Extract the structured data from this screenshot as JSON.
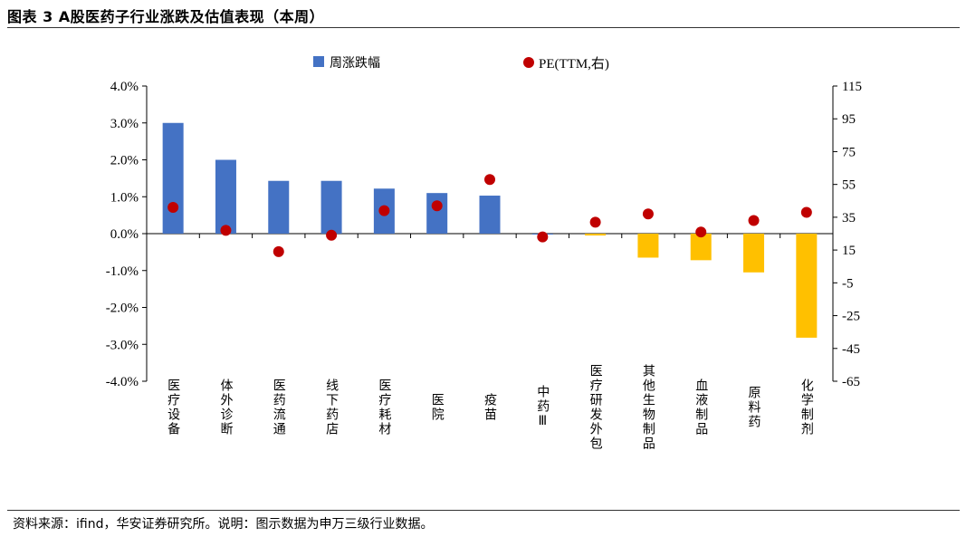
{
  "figure": {
    "title": "图表 3 A股医药子行业涨跌及估值表现（本周）",
    "source": "资料来源：ifind，华安证券研究所。说明：图示数据为申万三级行业数据。"
  },
  "chart_data": {
    "type": "bar",
    "categories": [
      "医疗设备",
      "体外诊断",
      "医药流通",
      "线下药店",
      "医疗耗材",
      "医院",
      "疫苗",
      "中药Ⅲ",
      "医疗研发外包",
      "其他生物制品",
      "血液制品",
      "原料药",
      "化学制剂"
    ],
    "series": [
      {
        "name": "周涨跌幅",
        "type": "bar",
        "axis": "left",
        "values": [
          3.0,
          2.0,
          1.43,
          1.43,
          1.22,
          1.1,
          1.03,
          0.0,
          -0.05,
          -0.65,
          -0.72,
          -1.05,
          -2.82
        ],
        "unit": "%"
      },
      {
        "name": "PE(TTM,右)",
        "type": "scatter",
        "axis": "right",
        "values": [
          41,
          27,
          14,
          24,
          39,
          42,
          58,
          23,
          32,
          37,
          26,
          33,
          38
        ]
      }
    ],
    "y_left": {
      "ticks": [
        "4.0%",
        "3.0%",
        "2.0%",
        "1.0%",
        "0.0%",
        "-1.0%",
        "-2.0%",
        "-3.0%",
        "-4.0%"
      ],
      "ylim": [
        -4,
        4
      ]
    },
    "y_right": {
      "ticks": [
        "115",
        "95",
        "75",
        "55",
        "35",
        "15",
        "-5",
        "-25",
        "-45",
        "-65"
      ],
      "ylim": [
        -65,
        115
      ]
    },
    "legend_position": "top-center",
    "grid": false,
    "colors": {
      "bar_positive": "#4472C4",
      "bar_negative": "#FFC000",
      "pe_marker": "#C00000"
    }
  }
}
